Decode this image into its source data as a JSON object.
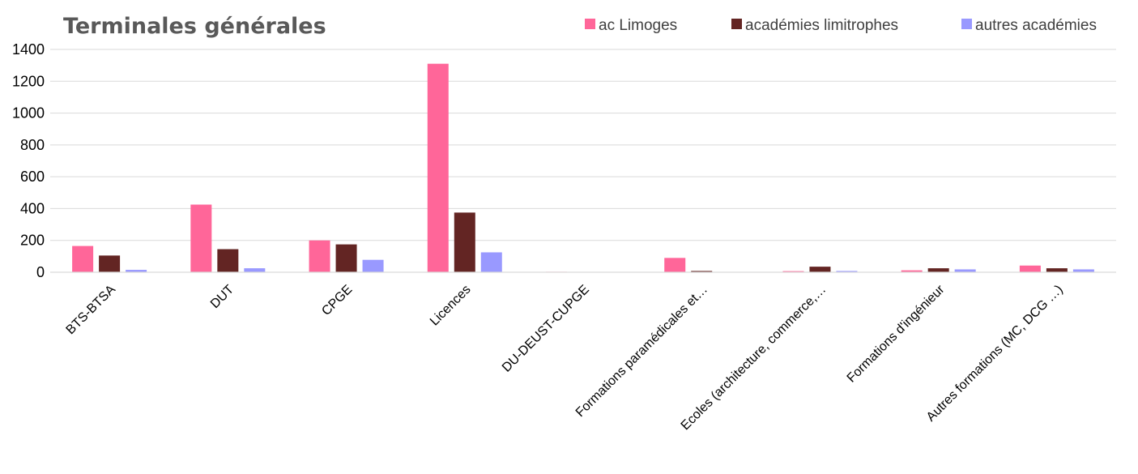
{
  "chart_data": {
    "type": "bar",
    "title": "Terminales générales",
    "xlabel": "",
    "ylabel": "",
    "ylim": [
      0,
      1400
    ],
    "yticks": [
      0,
      200,
      400,
      600,
      800,
      1000,
      1200,
      1400
    ],
    "grid": true,
    "legend_position": "top-right",
    "categories": [
      "BTS-BTSA",
      "DUT",
      "CPGE",
      "Licences",
      "DU-DEUST-CUPGE",
      "Formations paramédicales et…",
      "Ecoles (architecture, commerce,…",
      "Formations d'ingénieur",
      "Autres formations (MC, DCG …)"
    ],
    "series": [
      {
        "name": "ac Limoges",
        "color": "#ff6699",
        "values": [
          165,
          425,
          200,
          1310,
          3,
          90,
          7,
          12,
          42
        ]
      },
      {
        "name": "académies limitrophes",
        "color": "#632523",
        "values": [
          105,
          145,
          175,
          375,
          1,
          8,
          35,
          25,
          25
        ]
      },
      {
        "name": "autres académies",
        "color": "#9999ff",
        "values": [
          15,
          25,
          78,
          125,
          1,
          2,
          8,
          18,
          18
        ]
      }
    ]
  }
}
